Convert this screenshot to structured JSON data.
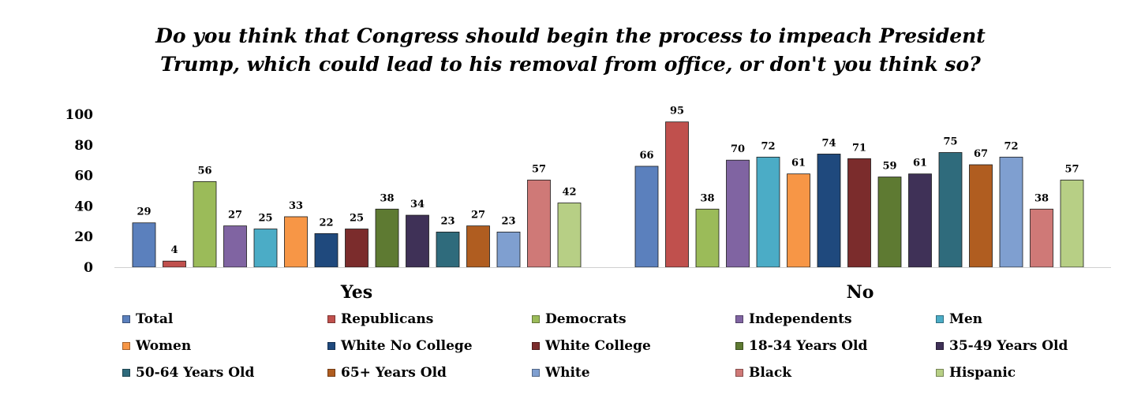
{
  "chart_data": {
    "type": "bar",
    "title_lines": [
      "Do you think that Congress should begin the process to impeach President",
      "Trump, which could lead to his removal from office, or don't you think so?"
    ],
    "categories": [
      "Yes",
      "No"
    ],
    "ylim": [
      0,
      100
    ],
    "yticks": [
      "0",
      "20",
      "40",
      "60",
      "80",
      "100"
    ],
    "grid": false,
    "legend_position": "bottom",
    "series": [
      {
        "name": "Total",
        "color": "#5b80bd",
        "values": [
          29,
          66
        ]
      },
      {
        "name": "Republicans",
        "color": "#c0504d",
        "values": [
          4,
          95
        ]
      },
      {
        "name": "Democrats",
        "color": "#9bbb59",
        "values": [
          56,
          38
        ]
      },
      {
        "name": "Independents",
        "color": "#8064a2",
        "values": [
          27,
          70
        ]
      },
      {
        "name": "Men",
        "color": "#4bacc6",
        "values": [
          25,
          72
        ]
      },
      {
        "name": "Women",
        "color": "#f79646",
        "values": [
          33,
          61
        ]
      },
      {
        "name": "White No College",
        "color": "#1f497d",
        "values": [
          22,
          74
        ]
      },
      {
        "name": "White College",
        "color": "#7b2c2c",
        "values": [
          25,
          71
        ]
      },
      {
        "name": "18-34 Years Old",
        "color": "#5e7a32",
        "values": [
          38,
          59
        ]
      },
      {
        "name": "35-49 Years Old",
        "color": "#3f3157",
        "values": [
          34,
          61
        ]
      },
      {
        "name": "50-64 Years Old",
        "color": "#2f6b7c",
        "values": [
          23,
          75
        ]
      },
      {
        "name": "65+ Years Old",
        "color": "#b05d20",
        "values": [
          27,
          67
        ]
      },
      {
        "name": "White",
        "color": "#7f9fd0",
        "values": [
          23,
          72
        ]
      },
      {
        "name": "Black",
        "color": "#cf7977",
        "values": [
          57,
          38
        ]
      },
      {
        "name": "Hispanic",
        "color": "#b7cf85",
        "values": [
          42,
          57
        ]
      }
    ]
  }
}
